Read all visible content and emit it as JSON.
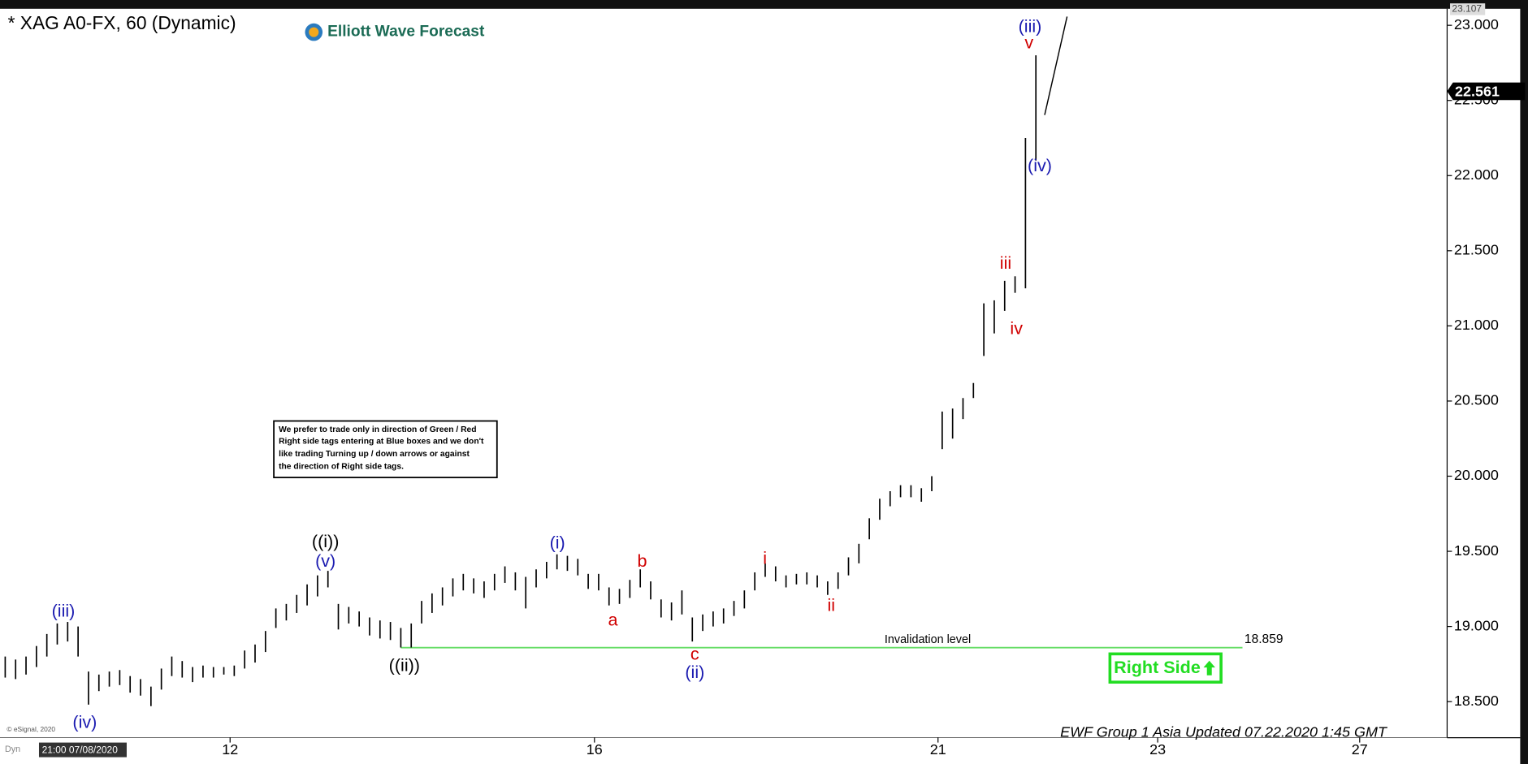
{
  "chart_data": {
    "type": "ohlc",
    "title": "* XAG A0-FX, 60 (Dynamic)",
    "brand": "Elliott Wave Forecast",
    "color": "#000000",
    "high": [
      18.8,
      18.78,
      18.8,
      18.87,
      18.95,
      19.02,
      19.03,
      19.0,
      18.7,
      18.68,
      18.7,
      18.71,
      18.67,
      18.65,
      18.6,
      18.72,
      18.8,
      18.77,
      18.73,
      18.74,
      18.73,
      18.73,
      18.74,
      18.84,
      18.88,
      18.97,
      19.12,
      19.15,
      19.21,
      19.28,
      19.34,
      19.37,
      19.15,
      19.13,
      19.1,
      19.06,
      19.04,
      19.03,
      18.99,
      19.02,
      19.17,
      19.22,
      19.26,
      19.32,
      19.35,
      19.32,
      19.3,
      19.35,
      19.4,
      19.36,
      19.33,
      19.38,
      19.43,
      19.48,
      19.47,
      19.45,
      19.35,
      19.35,
      19.26,
      19.25,
      19.31,
      19.38,
      19.3,
      19.18,
      19.16,
      19.24,
      19.06,
      19.08,
      19.1,
      19.12,
      19.17,
      19.24,
      19.36,
      19.42,
      19.4,
      19.34,
      19.35,
      19.36,
      19.34,
      19.3,
      19.36,
      19.46,
      19.55,
      19.72,
      19.85,
      19.9,
      19.94,
      19.94,
      19.92,
      20.0,
      20.43,
      20.45,
      20.52,
      20.62,
      21.15,
      21.17,
      21.3,
      21.33,
      22.25,
      22.8
    ],
    "low": [
      18.66,
      18.65,
      18.68,
      18.73,
      18.8,
      18.88,
      18.9,
      18.8,
      18.48,
      18.57,
      18.6,
      18.61,
      18.56,
      18.54,
      18.47,
      18.58,
      18.67,
      18.66,
      18.63,
      18.66,
      18.66,
      18.68,
      18.67,
      18.72,
      18.76,
      18.83,
      18.99,
      19.04,
      19.09,
      19.14,
      19.2,
      19.26,
      18.98,
      19.02,
      19.0,
      18.94,
      18.92,
      18.91,
      18.86,
      18.86,
      19.02,
      19.09,
      19.14,
      19.2,
      19.24,
      19.22,
      19.19,
      19.24,
      19.29,
      19.24,
      19.12,
      19.26,
      19.32,
      19.38,
      19.37,
      19.34,
      19.25,
      19.24,
      19.14,
      19.15,
      19.19,
      19.26,
      19.18,
      19.06,
      19.04,
      19.08,
      18.9,
      18.97,
      19.0,
      19.02,
      19.07,
      19.12,
      19.24,
      19.33,
      19.3,
      19.26,
      19.28,
      19.28,
      19.26,
      19.21,
      19.25,
      19.34,
      19.42,
      19.58,
      19.71,
      19.8,
      19.86,
      19.86,
      19.83,
      19.9,
      20.18,
      20.25,
      20.38,
      20.52,
      20.8,
      20.95,
      21.1,
      21.22,
      21.25,
      22.1
    ],
    "xlim": [
      -0.5,
      138.5
    ],
    "xticks": [
      {
        "value": 21.6,
        "label": "12"
      },
      {
        "value": 56.6,
        "label": "16"
      },
      {
        "value": 89.6,
        "label": "21"
      },
      {
        "value": 110.7,
        "label": "23"
      },
      {
        "value": 130.1,
        "label": "27"
      }
    ],
    "x_start_label": "21:00 07/08/2020",
    "ylim": [
      18.26,
      23.11
    ],
    "yticks": [
      {
        "value": 18.5,
        "label": "18.500"
      },
      {
        "value": 19,
        "label": "19.000"
      },
      {
        "value": 19.5,
        "label": "19.500"
      },
      {
        "value": 20,
        "label": "20.000"
      },
      {
        "value": 20.5,
        "label": "20.500"
      },
      {
        "value": 21,
        "label": "21.000"
      },
      {
        "value": 21.5,
        "label": "21.500"
      },
      {
        "value": 22,
        "label": "22.000"
      },
      {
        "value": 22.5,
        "label": "22.500"
      },
      {
        "value": 23,
        "label": "23.000"
      }
    ],
    "top_price": {
      "value": 23.107,
      "label": "23.107"
    },
    "last_price": {
      "value": 22.561,
      "label": "22.561"
    },
    "invalidation": {
      "value": 18.859,
      "label": "18.859",
      "text": "Invalidation level"
    },
    "wave_labels": [
      "(iii)",
      "(iv)",
      "((i))",
      "(v)",
      "((ii))",
      "(i)",
      "a",
      "b",
      "c",
      "(ii)",
      "i",
      "ii",
      "iii",
      "iv",
      "v",
      "(iii)",
      "(iv)"
    ],
    "note": [
      "We prefer to trade only in direction of Green / Red",
      "Right side tags entering at Blue boxes and we don't",
      "like trading Turning up / down arrows or against",
      "the direction of Right side tags."
    ],
    "right_side": "Right Side",
    "footer": "EWF Group 1 Asia Updated 07.22.2020 1:45 GMT",
    "copyright": "© eSignal, 2020",
    "dyn": "Dyn"
  }
}
